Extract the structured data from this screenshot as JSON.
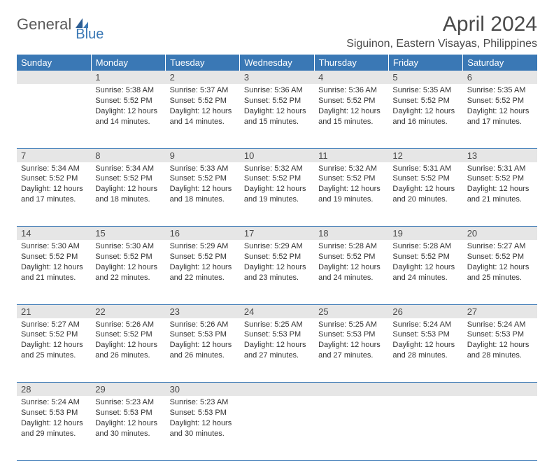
{
  "logo": {
    "text1": "General",
    "text2": "Blue"
  },
  "title": "April 2024",
  "location": "Siguinon, Eastern Visayas, Philippines",
  "colors": {
    "header_bg": "#3a78b5",
    "header_text": "#ffffff",
    "daynum_bg": "#e6e6e6",
    "daynum_text": "#4a4a4a",
    "body_text": "#333333",
    "rule": "#3a78b5",
    "page_bg": "#ffffff",
    "logo_gray": "#5a5a5a",
    "logo_blue": "#3a78b5"
  },
  "typography": {
    "title_fontsize": 30,
    "location_fontsize": 16,
    "header_fontsize": 13,
    "daynum_fontsize": 13,
    "body_fontsize": 11,
    "font_family": "Arial"
  },
  "day_headers": [
    "Sunday",
    "Monday",
    "Tuesday",
    "Wednesday",
    "Thursday",
    "Friday",
    "Saturday"
  ],
  "weeks": [
    [
      null,
      {
        "n": "1",
        "sr": "Sunrise: 5:38 AM",
        "ss": "Sunset: 5:52 PM",
        "dl": "Daylight: 12 hours and 14 minutes."
      },
      {
        "n": "2",
        "sr": "Sunrise: 5:37 AM",
        "ss": "Sunset: 5:52 PM",
        "dl": "Daylight: 12 hours and 14 minutes."
      },
      {
        "n": "3",
        "sr": "Sunrise: 5:36 AM",
        "ss": "Sunset: 5:52 PM",
        "dl": "Daylight: 12 hours and 15 minutes."
      },
      {
        "n": "4",
        "sr": "Sunrise: 5:36 AM",
        "ss": "Sunset: 5:52 PM",
        "dl": "Daylight: 12 hours and 15 minutes."
      },
      {
        "n": "5",
        "sr": "Sunrise: 5:35 AM",
        "ss": "Sunset: 5:52 PM",
        "dl": "Daylight: 12 hours and 16 minutes."
      },
      {
        "n": "6",
        "sr": "Sunrise: 5:35 AM",
        "ss": "Sunset: 5:52 PM",
        "dl": "Daylight: 12 hours and 17 minutes."
      }
    ],
    [
      {
        "n": "7",
        "sr": "Sunrise: 5:34 AM",
        "ss": "Sunset: 5:52 PM",
        "dl": "Daylight: 12 hours and 17 minutes."
      },
      {
        "n": "8",
        "sr": "Sunrise: 5:34 AM",
        "ss": "Sunset: 5:52 PM",
        "dl": "Daylight: 12 hours and 18 minutes."
      },
      {
        "n": "9",
        "sr": "Sunrise: 5:33 AM",
        "ss": "Sunset: 5:52 PM",
        "dl": "Daylight: 12 hours and 18 minutes."
      },
      {
        "n": "10",
        "sr": "Sunrise: 5:32 AM",
        "ss": "Sunset: 5:52 PM",
        "dl": "Daylight: 12 hours and 19 minutes."
      },
      {
        "n": "11",
        "sr": "Sunrise: 5:32 AM",
        "ss": "Sunset: 5:52 PM",
        "dl": "Daylight: 12 hours and 19 minutes."
      },
      {
        "n": "12",
        "sr": "Sunrise: 5:31 AM",
        "ss": "Sunset: 5:52 PM",
        "dl": "Daylight: 12 hours and 20 minutes."
      },
      {
        "n": "13",
        "sr": "Sunrise: 5:31 AM",
        "ss": "Sunset: 5:52 PM",
        "dl": "Daylight: 12 hours and 21 minutes."
      }
    ],
    [
      {
        "n": "14",
        "sr": "Sunrise: 5:30 AM",
        "ss": "Sunset: 5:52 PM",
        "dl": "Daylight: 12 hours and 21 minutes."
      },
      {
        "n": "15",
        "sr": "Sunrise: 5:30 AM",
        "ss": "Sunset: 5:52 PM",
        "dl": "Daylight: 12 hours and 22 minutes."
      },
      {
        "n": "16",
        "sr": "Sunrise: 5:29 AM",
        "ss": "Sunset: 5:52 PM",
        "dl": "Daylight: 12 hours and 22 minutes."
      },
      {
        "n": "17",
        "sr": "Sunrise: 5:29 AM",
        "ss": "Sunset: 5:52 PM",
        "dl": "Daylight: 12 hours and 23 minutes."
      },
      {
        "n": "18",
        "sr": "Sunrise: 5:28 AM",
        "ss": "Sunset: 5:52 PM",
        "dl": "Daylight: 12 hours and 24 minutes."
      },
      {
        "n": "19",
        "sr": "Sunrise: 5:28 AM",
        "ss": "Sunset: 5:52 PM",
        "dl": "Daylight: 12 hours and 24 minutes."
      },
      {
        "n": "20",
        "sr": "Sunrise: 5:27 AM",
        "ss": "Sunset: 5:52 PM",
        "dl": "Daylight: 12 hours and 25 minutes."
      }
    ],
    [
      {
        "n": "21",
        "sr": "Sunrise: 5:27 AM",
        "ss": "Sunset: 5:52 PM",
        "dl": "Daylight: 12 hours and 25 minutes."
      },
      {
        "n": "22",
        "sr": "Sunrise: 5:26 AM",
        "ss": "Sunset: 5:52 PM",
        "dl": "Daylight: 12 hours and 26 minutes."
      },
      {
        "n": "23",
        "sr": "Sunrise: 5:26 AM",
        "ss": "Sunset: 5:53 PM",
        "dl": "Daylight: 12 hours and 26 minutes."
      },
      {
        "n": "24",
        "sr": "Sunrise: 5:25 AM",
        "ss": "Sunset: 5:53 PM",
        "dl": "Daylight: 12 hours and 27 minutes."
      },
      {
        "n": "25",
        "sr": "Sunrise: 5:25 AM",
        "ss": "Sunset: 5:53 PM",
        "dl": "Daylight: 12 hours and 27 minutes."
      },
      {
        "n": "26",
        "sr": "Sunrise: 5:24 AM",
        "ss": "Sunset: 5:53 PM",
        "dl": "Daylight: 12 hours and 28 minutes."
      },
      {
        "n": "27",
        "sr": "Sunrise: 5:24 AM",
        "ss": "Sunset: 5:53 PM",
        "dl": "Daylight: 12 hours and 28 minutes."
      }
    ],
    [
      {
        "n": "28",
        "sr": "Sunrise: 5:24 AM",
        "ss": "Sunset: 5:53 PM",
        "dl": "Daylight: 12 hours and 29 minutes."
      },
      {
        "n": "29",
        "sr": "Sunrise: 5:23 AM",
        "ss": "Sunset: 5:53 PM",
        "dl": "Daylight: 12 hours and 30 minutes."
      },
      {
        "n": "30",
        "sr": "Sunrise: 5:23 AM",
        "ss": "Sunset: 5:53 PM",
        "dl": "Daylight: 12 hours and 30 minutes."
      },
      null,
      null,
      null,
      null
    ]
  ]
}
